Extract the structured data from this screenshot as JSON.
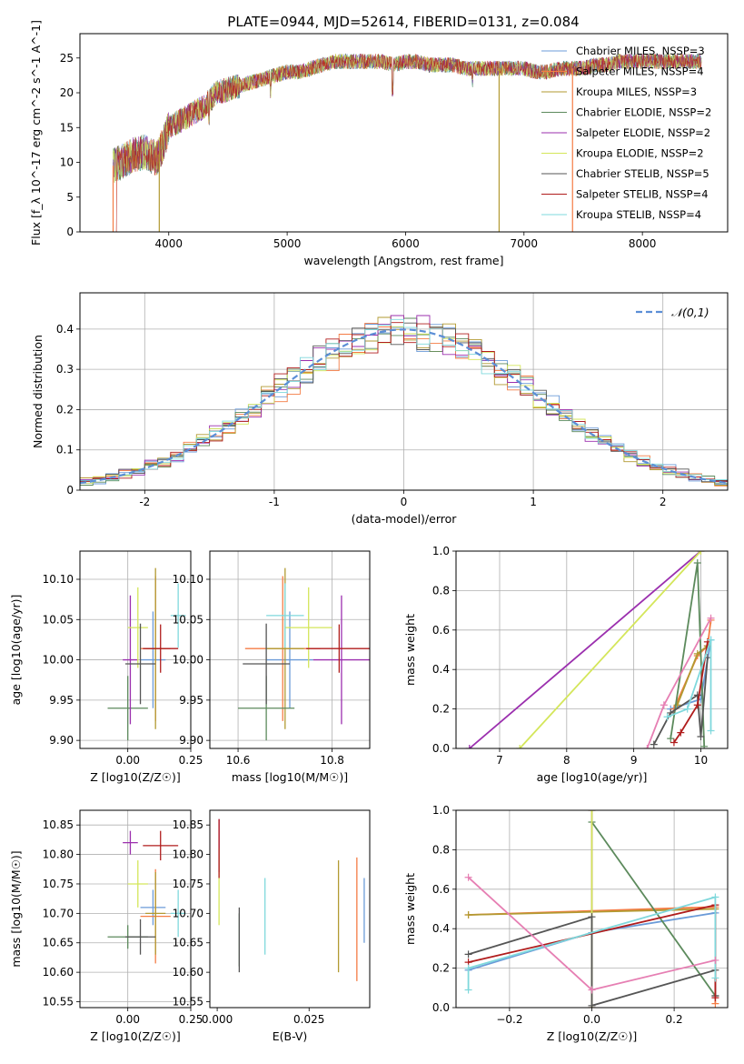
{
  "figure": {
    "title": "PLATE=0944, MJD=52614, FIBERID=0131, z=0.084"
  },
  "chart_data": [
    {
      "id": "spectrum",
      "type": "line",
      "xlabel": "wavelength [Angstrom, rest frame]",
      "ylabel": "Flux [f_λ 10^-17 erg cm^-2 s^-1 A^-1]",
      "xlim": [
        3250,
        8720
      ],
      "ylim": [
        0,
        28.5
      ],
      "xticks": [
        4000,
        5000,
        6000,
        7000,
        8000
      ],
      "yticks": [
        0,
        5,
        10,
        15,
        20,
        25
      ],
      "grid": false,
      "legend_position": "top-right",
      "envelope": {
        "x": [
          3530,
          3600,
          3700,
          3800,
          3900,
          3950,
          4000,
          4100,
          4200,
          4300,
          4400,
          4500,
          4600,
          4700,
          4800,
          4900,
          5000,
          5100,
          5200,
          5300,
          5400,
          5500,
          5600,
          5700,
          5800,
          5900,
          6000,
          6100,
          6200,
          6300,
          6400,
          6500,
          6600,
          6700,
          6800,
          6900,
          7000,
          7100,
          7200,
          7300,
          7400,
          7500,
          7600,
          7700,
          7800,
          7900,
          8000,
          8100,
          8200,
          8300,
          8400,
          8500
        ],
        "y": [
          9.5,
          10,
          11,
          11.5,
          10.5,
          12.5,
          15,
          16,
          17,
          18,
          20,
          20.5,
          21,
          21.5,
          22,
          22.5,
          23,
          23,
          23.5,
          24,
          24.5,
          24.5,
          24.5,
          24.5,
          24.5,
          24,
          24.5,
          24.5,
          24,
          24,
          24,
          23.5,
          23.5,
          23.5,
          23.5,
          23.5,
          23.5,
          23,
          23,
          23.5,
          23.5,
          23.5,
          24,
          24,
          24.5,
          24.5,
          24.5,
          24.5,
          24.5,
          24.5,
          24.5,
          24.5
        ]
      },
      "series": [
        {
          "name": "Chabrier MILES, N_SSP=3",
          "color": "#6b9bd8"
        },
        {
          "name": "Salpeter MILES, N_SSP=4",
          "color": "#f47c44"
        },
        {
          "name": "Kroupa MILES, N_SSP=3",
          "color": "#b29a32"
        },
        {
          "name": "Chabrier ELODIE, N_SSP=2",
          "color": "#5c8a5c"
        },
        {
          "name": "Salpeter ELODIE, N_SSP=2",
          "color": "#9b2fae"
        },
        {
          "name": "Kroupa ELODIE, N_SSP=2",
          "color": "#d4e65a"
        },
        {
          "name": "Chabrier STELIB, N_SSP=5",
          "color": "#555555"
        },
        {
          "name": "Salpeter STELIB, N_SSP=4",
          "color": "#b01c1c"
        },
        {
          "name": "Kroupa STELIB, N_SSP=4",
          "color": "#7fd8dc"
        }
      ]
    },
    {
      "id": "residuals",
      "type": "line",
      "xlabel": "(data-model)/error",
      "ylabel": "Normed distribution",
      "xlim": [
        -2.5,
        2.5
      ],
      "ylim": [
        0,
        0.49
      ],
      "xticks": [
        -2,
        -1,
        0,
        1,
        2
      ],
      "yticks": [
        0.0,
        0.1,
        0.2,
        0.3,
        0.4
      ],
      "grid": true,
      "legend_position": "top-right",
      "legend_label": "𝒩(0,1)",
      "gaussian_color": "#5b8ed6"
    },
    {
      "id": "age-vs-Z",
      "type": "scatter",
      "xlabel": "Z [log10(Z/Z☉)]",
      "ylabel": "age  [log10(age/yr)]",
      "xlim": [
        -0.19,
        0.25
      ],
      "ylim": [
        9.89,
        10.135
      ],
      "xticks": [
        "0.00",
        "0.25"
      ],
      "yticks": [
        "9.90",
        "9.95",
        "10.00",
        "10.05",
        "10.10"
      ],
      "grid": true
    },
    {
      "id": "age-vs-mass",
      "type": "scatter",
      "xlabel": "mass [log10(M/M☉)]",
      "ylabel": "",
      "xlim": [
        10.54,
        10.88
      ],
      "ylim": [
        9.89,
        10.135
      ],
      "xticks": [
        "10.6",
        "10.8"
      ],
      "yticks": [
        "9.90",
        "9.95",
        "10.00",
        "10.05",
        "10.10"
      ],
      "grid": true
    },
    {
      "id": "weight-vs-age",
      "type": "line",
      "xlabel": "age  [log10(age/yr)]",
      "ylabel": "mass weight",
      "xlim": [
        6.35,
        10.4
      ],
      "ylim": [
        0,
        1.0
      ],
      "xticks": [
        "7",
        "8",
        "9",
        "10"
      ],
      "yticks": [
        "0.0",
        "0.2",
        "0.4",
        "0.6",
        "0.8",
        "1.0"
      ],
      "grid": true
    },
    {
      "id": "mass-vs-Z",
      "type": "scatter",
      "xlabel": "Z [log10(Z/Z☉)]",
      "ylabel": "mass [log10(M/M☉)]",
      "xlim": [
        -0.19,
        0.25
      ],
      "ylim": [
        10.54,
        10.875
      ],
      "xticks": [
        "0.00",
        "0.25"
      ],
      "yticks": [
        "10.55",
        "10.60",
        "10.65",
        "10.70",
        "10.75",
        "10.80",
        "10.85"
      ],
      "grid": true
    },
    {
      "id": "mass-vs-EBV",
      "type": "scatter",
      "xlabel": "E(B-V)",
      "ylabel": "",
      "xlim": [
        -0.002,
        0.0415
      ],
      "ylim": [
        10.54,
        10.875
      ],
      "xticks": [
        "0.000",
        "0.025"
      ],
      "yticks": [
        "10.55",
        "10.60",
        "10.65",
        "10.70",
        "10.75",
        "10.80",
        "10.85"
      ],
      "grid": false
    },
    {
      "id": "weight-vs-Z",
      "type": "line",
      "xlabel": "Z [log10(Z/Z☉)]",
      "ylabel": "mass weight",
      "xlim": [
        -0.33,
        0.33
      ],
      "ylim": [
        0,
        1.0
      ],
      "xticks": [
        "−0.2",
        "0.0",
        "0.2"
      ],
      "yticks": [
        "0.0",
        "0.2",
        "0.4",
        "0.6",
        "0.8",
        "1.0"
      ],
      "grid": true
    }
  ]
}
